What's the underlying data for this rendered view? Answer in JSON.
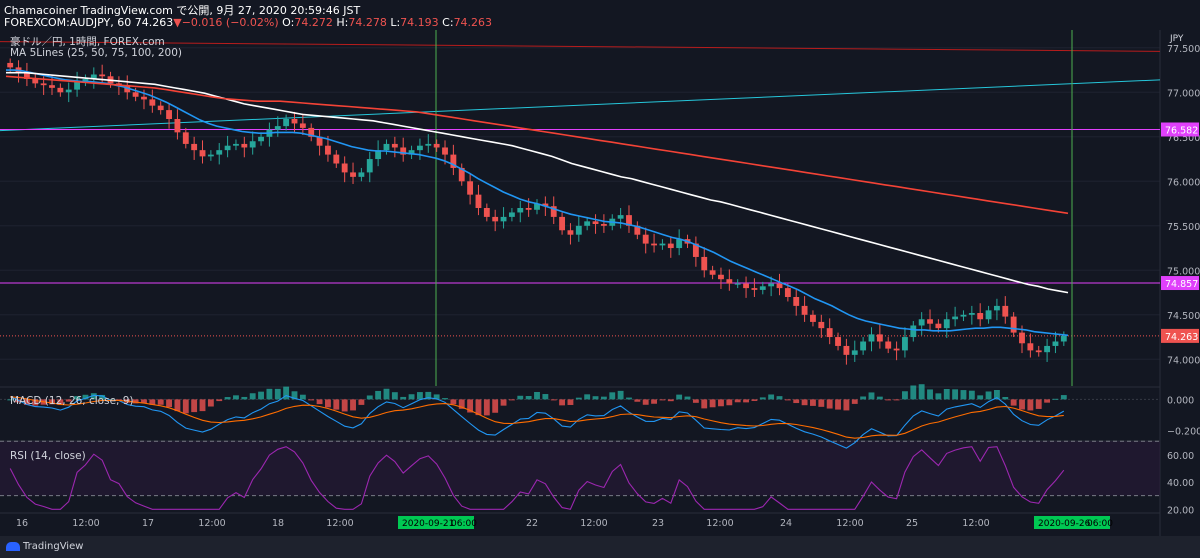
{
  "header": {
    "publisher_line": "Chamacoiner TradingView.com で公開, 9月 27, 2020 20:59:46 JST",
    "symbol": "FOREXCOM:AUDJPY, 60",
    "last": "74.263",
    "arrow": "▼",
    "change": "−0.016 (−0.02%)",
    "o_label": "O:",
    "o_value": "74.272",
    "h_label": "H:",
    "h_value": "74.278",
    "l_label": "L:",
    "l_value": "74.193",
    "c_label": "C:",
    "c_value": "74.263"
  },
  "legend": {
    "instrument": "豪ドル／円, 1時間, FOREX.com",
    "ma_indicator": "MA 5Lines (25, 50, 75, 100, 200)",
    "macd_indicator": "MACD (12, 26, close, 9)",
    "rsi_indicator": "RSI (14, close)"
  },
  "footer": {
    "brand": "TradingView"
  },
  "colors": {
    "background": "#131722",
    "up": "#26a69a",
    "down": "#ef5350",
    "ma25": "#2196f3",
    "ma75": "#ffffff",
    "ma200": "#f44336",
    "horizontal_line": "#e040fb",
    "trend_top": "#b71c1c",
    "trend_mid": "#26c6da",
    "vertical_marker": "#4caf50",
    "macd_line": "#2196f3",
    "signal_line": "#ff6d00",
    "rsi_line": "#9c27b0"
  },
  "chart_data": [
    {
      "type": "candlestick",
      "title": "豪ドル／円, 1時間, FOREX.com",
      "currency": "JPY",
      "ylim": [
        73.7,
        77.7
      ],
      "y_ticks": [
        "77.500",
        "77.000",
        "76.500",
        "76.000",
        "75.500",
        "75.000",
        "74.500",
        "74.000"
      ],
      "x_ticks": [
        "16",
        "12:00",
        "17",
        "12:00",
        "18",
        "12:00",
        "22",
        "12:00",
        "23",
        "12:00",
        "24",
        "12:00",
        "25",
        "12:00"
      ],
      "x_highlight_labels": [
        "2020-09-21",
        "06:00",
        "2020-09-26",
        "06:00"
      ],
      "horizontal_lines": [
        {
          "value": 76.582,
          "label": "76.582"
        },
        {
          "value": 74.857,
          "label": "74.857"
        }
      ],
      "last_price": {
        "value": 74.263,
        "label": "74.263"
      },
      "close_series": [
        77.28,
        77.22,
        77.15,
        77.1,
        77.08,
        77.05,
        77.0,
        77.03,
        77.12,
        77.15,
        77.2,
        77.18,
        77.1,
        77.08,
        77.0,
        76.95,
        76.92,
        76.85,
        76.8,
        76.7,
        76.55,
        76.42,
        76.35,
        76.28,
        76.3,
        76.35,
        76.4,
        76.42,
        76.38,
        76.45,
        76.5,
        76.58,
        76.62,
        76.7,
        76.65,
        76.6,
        76.5,
        76.4,
        76.3,
        76.2,
        76.1,
        76.05,
        76.1,
        76.25,
        76.35,
        76.42,
        76.38,
        76.3,
        76.35,
        76.4,
        76.42,
        76.38,
        76.3,
        76.15,
        76.0,
        75.85,
        75.7,
        75.6,
        75.55,
        75.6,
        75.65,
        75.7,
        75.68,
        75.75,
        75.72,
        75.6,
        75.45,
        75.4,
        75.5,
        75.55,
        75.52,
        75.5,
        75.58,
        75.62,
        75.5,
        75.4,
        75.3,
        75.28,
        75.3,
        75.25,
        75.35,
        75.3,
        75.15,
        75.0,
        74.95,
        74.9,
        74.85,
        74.85,
        74.8,
        74.78,
        74.82,
        74.85,
        74.8,
        74.7,
        74.6,
        74.5,
        74.42,
        74.35,
        74.25,
        74.15,
        74.05,
        74.1,
        74.2,
        74.28,
        74.2,
        74.12,
        74.1,
        74.25,
        74.38,
        74.45,
        74.4,
        74.35,
        74.45,
        74.48,
        74.5,
        74.52,
        74.45,
        74.55,
        74.6,
        74.48,
        74.3,
        74.18,
        74.1,
        74.08,
        74.15,
        74.2,
        74.263
      ],
      "series": [
        {
          "name": "MA",
          "period": 25,
          "values": [
            77.25,
            77.25,
            77.24,
            77.22,
            77.2,
            77.18,
            77.16,
            77.14,
            77.13,
            77.12,
            77.12,
            77.11,
            77.1,
            77.08,
            77.06,
            77.03,
            77.0,
            76.97,
            76.93,
            76.89,
            76.84,
            76.79,
            76.74,
            76.69,
            76.65,
            76.62,
            76.6,
            76.58,
            76.56,
            76.55,
            76.54,
            76.54,
            76.55,
            76.55,
            76.55,
            76.54,
            76.52,
            76.5,
            76.48,
            76.45,
            76.42,
            76.39,
            76.37,
            76.35,
            76.34,
            76.34,
            76.33,
            76.32,
            76.31,
            76.3,
            76.28,
            76.26,
            76.23,
            76.19,
            76.14,
            76.09,
            76.03,
            75.98,
            75.93,
            75.88,
            75.84,
            75.8,
            75.77,
            75.75,
            75.72,
            75.69,
            75.66,
            75.63,
            75.61,
            75.59,
            75.57,
            75.55,
            75.54,
            75.53,
            75.51,
            75.49,
            75.46,
            75.43,
            75.4,
            75.37,
            75.35,
            75.32,
            75.28,
            75.24,
            75.2,
            75.15,
            75.1,
            75.06,
            75.02,
            74.98,
            74.94,
            74.9,
            74.86,
            74.82,
            74.78,
            74.73,
            74.68,
            74.64,
            74.6,
            74.55,
            74.5,
            74.46,
            74.43,
            74.41,
            74.39,
            74.37,
            74.35,
            74.34,
            74.33,
            74.33,
            74.32,
            74.32,
            74.32,
            74.33,
            74.34,
            74.35,
            74.35,
            74.36,
            74.36,
            74.35,
            74.34,
            74.33,
            74.31,
            74.3,
            74.29,
            74.28,
            74.27
          ]
        },
        {
          "name": "MA",
          "period": 75,
          "values": [
            77.22,
            77.22,
            77.22,
            77.21,
            77.2,
            77.19,
            77.18,
            77.17,
            77.16,
            77.15,
            77.14,
            77.13,
            77.12,
            77.11,
            77.1,
            77.09,
            77.07,
            77.05,
            77.03,
            77.01,
            76.99,
            76.96,
            76.93,
            76.9,
            76.87,
            76.85,
            76.83,
            76.81,
            76.79,
            76.77,
            76.75,
            76.74,
            76.73,
            76.72,
            76.71,
            76.7,
            76.69,
            76.68,
            76.66,
            76.64,
            76.62,
            76.6,
            76.58,
            76.56,
            76.54,
            76.52,
            76.5,
            76.48,
            76.46,
            76.44,
            76.42,
            76.4,
            76.37,
            76.34,
            76.31,
            76.28,
            76.24,
            76.2,
            76.17,
            76.14,
            76.11,
            76.08,
            76.05,
            76.03,
            76.0,
            75.97,
            75.94,
            75.91,
            75.88,
            75.85,
            75.82,
            75.79,
            75.77,
            75.74,
            75.71,
            75.68,
            75.65,
            75.62,
            75.59,
            75.56,
            75.53,
            75.5,
            75.47,
            75.44,
            75.41,
            75.38,
            75.35,
            75.32,
            75.29,
            75.26,
            75.23,
            75.2,
            75.17,
            75.14,
            75.11,
            75.08,
            75.05,
            75.02,
            74.99,
            74.96,
            74.93,
            74.9,
            74.87,
            74.84,
            74.82,
            74.79,
            74.77,
            74.75
          ]
        },
        {
          "name": "MA",
          "period": 200,
          "values": [
            77.18,
            77.17,
            77.16,
            77.15,
            77.14,
            77.13,
            77.12,
            77.11,
            77.1,
            77.09,
            77.08,
            77.07,
            77.06,
            77.05,
            77.03,
            77.01,
            76.99,
            76.97,
            76.95,
            76.93,
            76.92,
            76.91,
            76.9,
            76.9,
            76.9,
            76.89,
            76.88,
            76.87,
            76.86,
            76.85,
            76.84,
            76.83,
            76.82,
            76.81,
            76.8,
            76.79,
            76.78,
            76.76,
            76.74,
            76.72,
            76.7,
            76.68,
            76.66,
            76.64,
            76.62,
            76.6,
            76.58,
            76.56,
            76.54,
            76.52,
            76.5,
            76.48,
            76.46,
            76.44,
            76.42,
            76.4,
            76.38,
            76.36,
            76.34,
            76.32,
            76.3,
            76.28,
            76.26,
            76.24,
            76.22,
            76.2,
            76.18,
            76.16,
            76.14,
            76.12,
            76.1,
            76.08,
            76.06,
            76.04,
            76.02,
            76.0,
            75.98,
            75.96,
            75.94,
            75.92,
            75.9,
            75.88,
            75.86,
            75.84,
            75.82,
            75.8,
            75.78,
            75.76,
            75.74,
            75.72,
            75.7,
            75.68,
            75.66,
            75.64
          ]
        }
      ],
      "trend_lines": [
        {
          "name": "upper",
          "from": 77.57,
          "to": 77.46
        },
        {
          "name": "rising",
          "from": 76.57,
          "to": 77.14
        }
      ]
    },
    {
      "type": "macd",
      "title": "MACD (12, 26, close, 9)",
      "y_ticks": [
        "0.000",
        "−0.200"
      ],
      "ylim": [
        -0.26,
        0.06
      ]
    },
    {
      "type": "line",
      "title": "RSI (14, close)",
      "y_ticks": [
        "60.00",
        "40.00",
        "20.00"
      ],
      "ylim": [
        18,
        68
      ],
      "bands": [
        70,
        30
      ]
    }
  ]
}
